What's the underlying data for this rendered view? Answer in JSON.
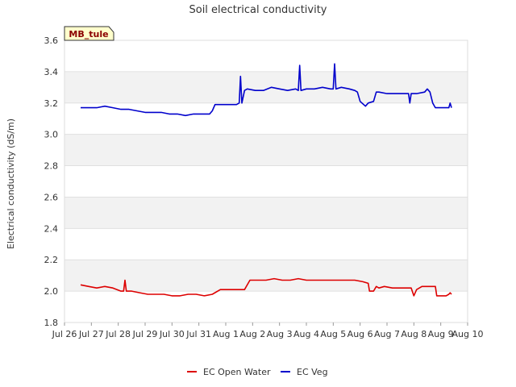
{
  "chart_data": {
    "type": "line",
    "title": "Soil electrical conductivity",
    "site_label": "MB_tule",
    "xlabel": "",
    "ylabel": "Electrical conductivity (dS/m)",
    "ylim": [
      1.8,
      3.6
    ],
    "xlim": [
      0,
      15
    ],
    "yticks": [
      1.8,
      2.0,
      2.2,
      2.4,
      2.6,
      2.8,
      3.0,
      3.2,
      3.4,
      3.6
    ],
    "ytick_labels": [
      "1.8",
      "2.0",
      "2.2",
      "2.4",
      "2.6",
      "2.8",
      "3.0",
      "3.2",
      "3.4",
      "3.6"
    ],
    "xticks": [
      0,
      1,
      2,
      3,
      4,
      5,
      6,
      7,
      8,
      9,
      10,
      11,
      12,
      13,
      14,
      15
    ],
    "xtick_labels": [
      "Jul 26",
      "Jul 27",
      "Jul 28",
      "Jul 29",
      "Jul 30",
      "Jul 31",
      "Aug 1",
      "Aug 2",
      "Aug 3",
      "Aug 4",
      "Aug 5",
      "Aug 6",
      "Aug 7",
      "Aug 8",
      "Aug 9",
      "Aug 10"
    ],
    "legend_position": "bottom-center",
    "series": [
      {
        "name": "EC Open Water",
        "color": "#dd0000",
        "x": [
          0.6,
          0.9,
          1.2,
          1.5,
          1.8,
          2.1,
          2.2,
          2.25,
          2.3,
          2.5,
          2.8,
          3.1,
          3.4,
          3.7,
          4.0,
          4.3,
          4.6,
          4.9,
          5.2,
          5.5,
          5.8,
          6.1,
          6.4,
          6.6,
          6.7,
          6.9,
          7.2,
          7.5,
          7.8,
          8.1,
          8.4,
          8.7,
          9.0,
          9.3,
          9.6,
          9.9,
          10.2,
          10.5,
          10.8,
          11.1,
          11.3,
          11.35,
          11.5,
          11.6,
          11.7,
          11.9,
          12.2,
          12.5,
          12.8,
          12.9,
          13.0,
          13.1,
          13.3,
          13.6,
          13.8,
          13.85,
          14.0,
          14.2,
          14.3,
          14.35,
          14.4
        ],
        "y": [
          2.04,
          2.03,
          2.02,
          2.03,
          2.02,
          2.0,
          2.0,
          2.07,
          2.0,
          2.0,
          1.99,
          1.98,
          1.98,
          1.98,
          1.97,
          1.97,
          1.98,
          1.98,
          1.97,
          1.98,
          2.01,
          2.01,
          2.01,
          2.01,
          2.01,
          2.07,
          2.07,
          2.07,
          2.08,
          2.07,
          2.07,
          2.08,
          2.07,
          2.07,
          2.07,
          2.07,
          2.07,
          2.07,
          2.07,
          2.06,
          2.05,
          2.0,
          2.0,
          2.03,
          2.02,
          2.03,
          2.02,
          2.02,
          2.02,
          2.02,
          1.97,
          2.01,
          2.03,
          2.03,
          2.03,
          1.97,
          1.97,
          1.97,
          1.98,
          1.99,
          1.98
        ]
      },
      {
        "name": "EC Veg",
        "color": "#0000cc",
        "x": [
          0.6,
          0.9,
          1.2,
          1.5,
          1.8,
          2.1,
          2.4,
          2.7,
          3.0,
          3.3,
          3.6,
          3.9,
          4.2,
          4.5,
          4.8,
          5.1,
          5.4,
          5.5,
          5.6,
          5.9,
          6.2,
          6.4,
          6.5,
          6.55,
          6.6,
          6.7,
          6.8,
          7.1,
          7.4,
          7.7,
          8.0,
          8.3,
          8.6,
          8.7,
          8.75,
          8.8,
          9.0,
          9.3,
          9.6,
          9.9,
          10.0,
          10.05,
          10.1,
          10.3,
          10.6,
          10.8,
          10.9,
          11.0,
          11.2,
          11.3,
          11.5,
          11.6,
          11.7,
          12.0,
          12.3,
          12.6,
          12.8,
          12.85,
          12.9,
          13.1,
          13.4,
          13.5,
          13.6,
          13.7,
          13.8,
          14.0,
          14.2,
          14.3,
          14.35,
          14.4
        ],
        "y": [
          3.17,
          3.17,
          3.17,
          3.18,
          3.17,
          3.16,
          3.16,
          3.15,
          3.14,
          3.14,
          3.14,
          3.13,
          3.13,
          3.12,
          3.13,
          3.13,
          3.13,
          3.15,
          3.19,
          3.19,
          3.19,
          3.19,
          3.2,
          3.37,
          3.2,
          3.28,
          3.29,
          3.28,
          3.28,
          3.3,
          3.29,
          3.28,
          3.29,
          3.28,
          3.44,
          3.28,
          3.29,
          3.29,
          3.3,
          3.29,
          3.29,
          3.45,
          3.29,
          3.3,
          3.29,
          3.28,
          3.27,
          3.21,
          3.18,
          3.2,
          3.21,
          3.27,
          3.27,
          3.26,
          3.26,
          3.26,
          3.26,
          3.2,
          3.26,
          3.26,
          3.27,
          3.29,
          3.27,
          3.2,
          3.17,
          3.17,
          3.17,
          3.17,
          3.2,
          3.17
        ]
      }
    ]
  }
}
